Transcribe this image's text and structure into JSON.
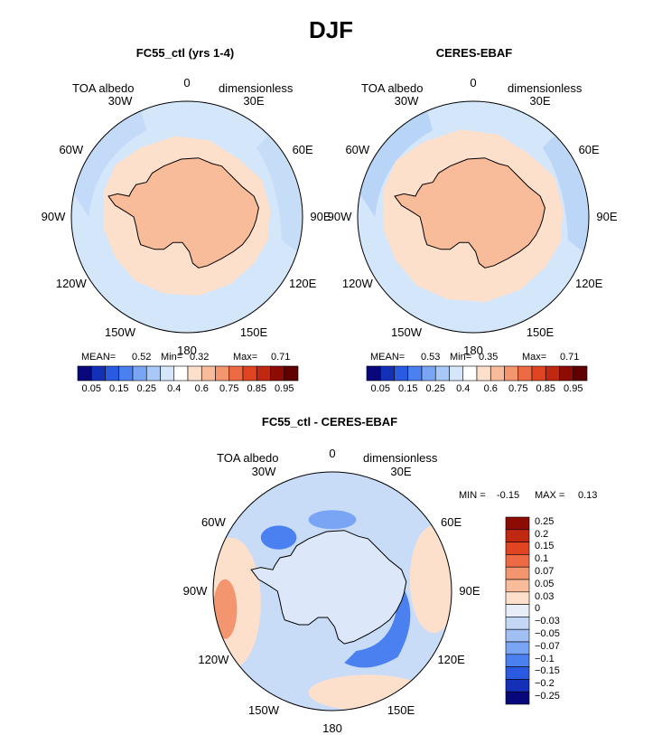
{
  "main_title": "DJF",
  "panels": [
    {
      "title": "FC55_ctl (yrs 1-4)",
      "variable": "TOA albedo",
      "units": "dimensionless",
      "lon_labels": [
        "0",
        "30E",
        "60E",
        "90E",
        "120E",
        "150E",
        "180",
        "150W",
        "120W",
        "90W",
        "60W",
        "30W"
      ],
      "stats": {
        "mean_label": "MEAN=",
        "mean": "0.52",
        "min_label": "Min=",
        "min": "0.32",
        "max_label": "Max=",
        "max": "0.71"
      },
      "colorbar_ticks": [
        "0.05",
        "0.15",
        "0.25",
        "0.4",
        "0.6",
        "0.75",
        "0.85",
        "0.95"
      ]
    },
    {
      "title": "CERES-EBAF",
      "variable": "TOA albedo",
      "units": "dimensionless",
      "lon_labels": [
        "0",
        "30E",
        "60E",
        "90E",
        "120E",
        "150E",
        "180",
        "150W",
        "120W",
        "90W",
        "60W",
        "30W"
      ],
      "stats": {
        "mean_label": "MEAN=",
        "mean": "0.53",
        "min_label": "Min=",
        "min": "0.35",
        "max_label": "Max=",
        "max": "0.71"
      },
      "colorbar_ticks": [
        "0.05",
        "0.15",
        "0.25",
        "0.4",
        "0.6",
        "0.75",
        "0.85",
        "0.95"
      ]
    },
    {
      "title": "FC55_ctl - CERES-EBAF",
      "variable": "TOA albedo",
      "units": "dimensionless",
      "lon_labels": [
        "0",
        "30E",
        "60E",
        "90E",
        "120E",
        "150E",
        "180",
        "150W",
        "120W",
        "90W",
        "60W",
        "30W"
      ],
      "stats": {
        "min_label": "MIN =",
        "min": "-0.15",
        "max_label": "MAX =",
        "max": "0.13"
      },
      "colorbar_ticks": [
        "0.25",
        "0.2",
        "0.15",
        "0.1",
        "0.07",
        "0.05",
        "0.03",
        "0",
        "−0.03",
        "−0.05",
        "−0.07",
        "−0.1",
        "−0.15",
        "−0.2",
        "−0.25"
      ]
    }
  ],
  "colors": {
    "abs_scale": [
      "#08087a",
      "#1530b8",
      "#2a5ae0",
      "#4a80f0",
      "#7aa5f5",
      "#a8c8f8",
      "#d6e6fa",
      "#ffffff",
      "#fde0cc",
      "#f8bc9a",
      "#f39670",
      "#ee6a44",
      "#e04420",
      "#c02810",
      "#8c0c04",
      "#600000"
    ],
    "diff_scale": [
      "#8c0c04",
      "#c02810",
      "#e04420",
      "#ee6a44",
      "#f39670",
      "#f8bc9a",
      "#fde0cc",
      "#e8eef8",
      "#c4d8f6",
      "#a0c0f4",
      "#7aa5f5",
      "#4a80f0",
      "#2a5ae0",
      "#1530b8",
      "#08087a"
    ],
    "ocean_light": "#d4e6fa",
    "ocean_mid": "#b8d4f6",
    "ice_light": "#fde0cc",
    "land": "#f8bc9a"
  }
}
